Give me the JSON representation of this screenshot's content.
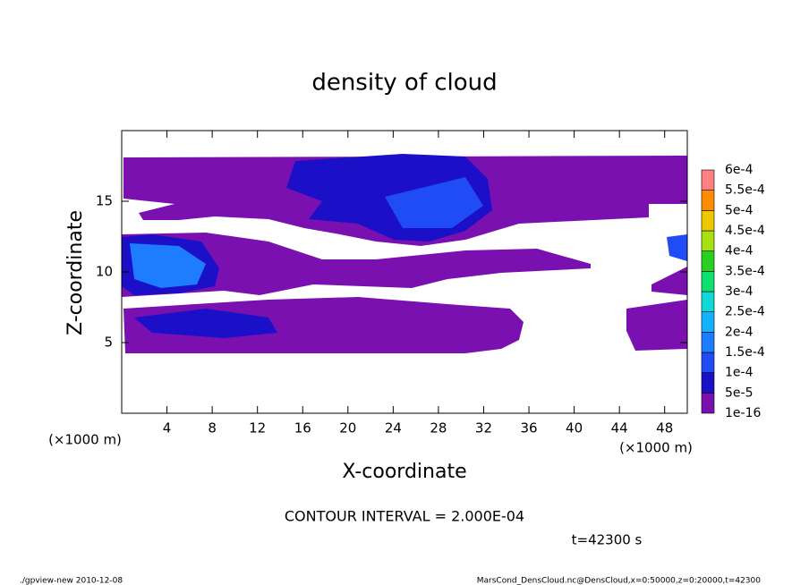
{
  "chart_data": {
    "type": "contour",
    "title": "density of cloud",
    "x_label": "X-coordinate",
    "y_label": "Z-coordinate",
    "x_unit": "(×1000 m)",
    "y_unit": "(×1000 m)",
    "xlim": [
      0,
      50
    ],
    "xticks": [
      4,
      8,
      12,
      16,
      20,
      24,
      28,
      32,
      36,
      40,
      44,
      48
    ],
    "ylim": [
      0,
      20
    ],
    "yticks": [
      5,
      10,
      15
    ],
    "levels": [
      {
        "value": 1e-16,
        "label": "1e-16"
      },
      {
        "value": 5e-05,
        "label": "5e-5"
      },
      {
        "value": 0.0001,
        "label": "1e-4"
      },
      {
        "value": 0.00015,
        "label": "1.5e-4"
      },
      {
        "value": 0.0002,
        "label": "2e-4"
      },
      {
        "value": 0.00025,
        "label": "2.5e-4"
      },
      {
        "value": 0.0003,
        "label": "3e-4"
      },
      {
        "value": 0.00035,
        "label": "3.5e-4"
      },
      {
        "value": 0.0004,
        "label": "4e-4"
      },
      {
        "value": 0.00045,
        "label": "4.5e-4"
      },
      {
        "value": 0.0005,
        "label": "5e-4"
      },
      {
        "value": 0.00055,
        "label": "5.5e-4"
      },
      {
        "value": 0.0006,
        "label": "6e-4"
      }
    ],
    "colors": [
      "#7a10b0",
      "#1c0fc8",
      "#1f4cf5",
      "#1e7cff",
      "#13b2ff",
      "#10d8d8",
      "#10e070",
      "#28d020",
      "#a8e010",
      "#f0c800",
      "#ff8c00",
      "#ff3010"
    ],
    "top_color": "#ff8080",
    "contour_interval": "CONTOUR INTERVAL = 2.000E-04",
    "time_label": "t=42300 s",
    "footer_left": "./gpview-new  2010-12-08",
    "footer_right": "MarsCond_DensCloud.nc@DensCloud,x=0:50000,z=0:20000,t=42300"
  }
}
